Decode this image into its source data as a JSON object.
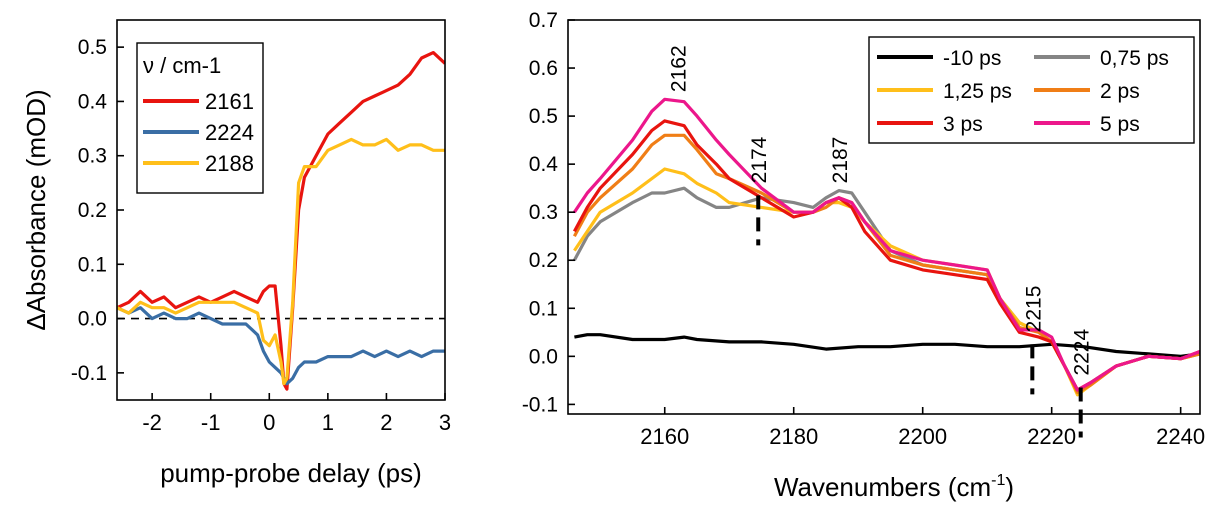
{
  "chart_data": [
    {
      "type": "line",
      "title": "",
      "xlabel": "pump-probe delay (ps)",
      "ylabel": "ΔAbsorbance (mOD)",
      "xlim": [
        -2.6,
        3.0
      ],
      "ylim": [
        -0.15,
        0.55
      ],
      "xticks": [
        -2,
        -1,
        0,
        1,
        2,
        3
      ],
      "yticks": [
        -0.1,
        0.0,
        0.1,
        0.2,
        0.3,
        0.4,
        0.5
      ],
      "xtick_labels": [
        "-2",
        "-1",
        "0",
        "1",
        "2",
        "3"
      ],
      "ytick_labels": [
        "-0.1",
        "0.0",
        "0.1",
        "0.2",
        "0.3",
        "0.4",
        "0.5"
      ],
      "zero_line": true,
      "legend": {
        "title": "ν / cm-1",
        "position": "top-left"
      },
      "series": [
        {
          "name": "2161",
          "color": "#e8140f",
          "x": [
            -2.6,
            -2.4,
            -2.2,
            -2.0,
            -1.8,
            -1.6,
            -1.4,
            -1.2,
            -1.0,
            -0.8,
            -0.6,
            -0.4,
            -0.2,
            -0.1,
            0.0,
            0.1,
            0.2,
            0.25,
            0.3,
            0.4,
            0.5,
            0.6,
            0.8,
            1.0,
            1.2,
            1.4,
            1.6,
            1.8,
            2.0,
            2.2,
            2.4,
            2.6,
            2.8,
            3.0
          ],
          "y": [
            0.02,
            0.03,
            0.05,
            0.03,
            0.04,
            0.02,
            0.03,
            0.04,
            0.03,
            0.04,
            0.05,
            0.04,
            0.03,
            0.05,
            0.06,
            0.06,
            -0.05,
            -0.12,
            -0.13,
            0.02,
            0.2,
            0.26,
            0.3,
            0.34,
            0.36,
            0.38,
            0.4,
            0.41,
            0.42,
            0.43,
            0.45,
            0.48,
            0.49,
            0.47
          ]
        },
        {
          "name": "2224",
          "color": "#3a6ea5",
          "x": [
            -2.6,
            -2.4,
            -2.2,
            -2.0,
            -1.8,
            -1.6,
            -1.4,
            -1.2,
            -1.0,
            -0.8,
            -0.6,
            -0.4,
            -0.2,
            -0.1,
            0.0,
            0.1,
            0.2,
            0.3,
            0.4,
            0.5,
            0.6,
            0.8,
            1.0,
            1.2,
            1.4,
            1.6,
            1.8,
            2.0,
            2.2,
            2.4,
            2.6,
            2.8,
            3.0
          ],
          "y": [
            0.02,
            0.01,
            0.02,
            0.0,
            0.01,
            0.0,
            0.0,
            0.01,
            0.0,
            -0.01,
            -0.01,
            -0.01,
            -0.03,
            -0.06,
            -0.08,
            -0.09,
            -0.1,
            -0.12,
            -0.11,
            -0.09,
            -0.08,
            -0.08,
            -0.07,
            -0.07,
            -0.07,
            -0.06,
            -0.07,
            -0.06,
            -0.07,
            -0.06,
            -0.07,
            -0.06,
            -0.06
          ]
        },
        {
          "name": "2188",
          "color": "#ffbf1a",
          "x": [
            -2.6,
            -2.4,
            -2.2,
            -2.0,
            -1.8,
            -1.6,
            -1.4,
            -1.2,
            -1.0,
            -0.8,
            -0.6,
            -0.4,
            -0.2,
            -0.1,
            0.0,
            0.1,
            0.2,
            0.25,
            0.3,
            0.4,
            0.5,
            0.6,
            0.8,
            1.0,
            1.2,
            1.4,
            1.6,
            1.8,
            2.0,
            2.2,
            2.4,
            2.6,
            2.8,
            3.0
          ],
          "y": [
            0.02,
            0.01,
            0.03,
            0.02,
            0.02,
            0.01,
            0.02,
            0.03,
            0.03,
            0.03,
            0.03,
            0.02,
            0.01,
            -0.04,
            -0.05,
            -0.03,
            -0.08,
            -0.12,
            -0.11,
            0.03,
            0.25,
            0.28,
            0.28,
            0.31,
            0.32,
            0.33,
            0.32,
            0.32,
            0.33,
            0.31,
            0.32,
            0.32,
            0.31,
            0.31
          ]
        }
      ]
    },
    {
      "type": "line",
      "title": "",
      "xlabel": "Wavenumbers (cm",
      "xlabel_sup": "-1",
      "xlabel_end": ")",
      "ylabel": "",
      "xlim": [
        2145,
        2243
      ],
      "ylim": [
        -0.12,
        0.7
      ],
      "xticks": [
        2160,
        2180,
        2200,
        2220,
        2240
      ],
      "yticks": [
        -0.1,
        0.0,
        0.1,
        0.2,
        0.3,
        0.4,
        0.5,
        0.6,
        0.7
      ],
      "xtick_labels": [
        "2160",
        "2180",
        "2200",
        "2220",
        "2240"
      ],
      "ytick_labels": [
        "-0.1",
        "0.0",
        "0.1",
        "0.2",
        "0.3",
        "0.4",
        "0.5",
        "0.6",
        "0.7"
      ],
      "legend": {
        "position": "top-right",
        "columns": 2
      },
      "annotations": [
        {
          "text": "2162",
          "x": 2162,
          "y": 0.55,
          "marker": false
        },
        {
          "text": "2174",
          "x": 2174.5,
          "y": 0.36,
          "marker": true
        },
        {
          "text": "2187",
          "x": 2187,
          "y": 0.36,
          "marker": false
        },
        {
          "text": "2215",
          "x": 2217,
          "y": 0.05,
          "marker": true
        },
        {
          "text": "2224",
          "x": 2224.5,
          "y": -0.04,
          "marker": true
        }
      ],
      "series": [
        {
          "name": "-10 ps",
          "color": "#000000",
          "x": [
            2146,
            2148,
            2150,
            2155,
            2160,
            2163,
            2165,
            2170,
            2175,
            2180,
            2185,
            2190,
            2195,
            2200,
            2205,
            2210,
            2215,
            2220,
            2225,
            2230,
            2235,
            2240,
            2243
          ],
          "y": [
            0.04,
            0.045,
            0.045,
            0.035,
            0.035,
            0.04,
            0.035,
            0.03,
            0.03,
            0.025,
            0.015,
            0.02,
            0.02,
            0.025,
            0.025,
            0.02,
            0.02,
            0.025,
            0.02,
            0.01,
            0.005,
            0.0,
            0.005
          ]
        },
        {
          "name": "0,75 ps",
          "color": "#858585",
          "x": [
            2146,
            2148,
            2150,
            2155,
            2158,
            2160,
            2163,
            2165,
            2168,
            2170,
            2175,
            2180,
            2183,
            2185,
            2187,
            2189,
            2191,
            2195,
            2200,
            2205,
            2210,
            2212,
            2215,
            2218,
            2220,
            2222,
            2224,
            2226,
            2230,
            2235,
            2240,
            2243
          ],
          "y": [
            0.2,
            0.25,
            0.28,
            0.32,
            0.34,
            0.34,
            0.35,
            0.33,
            0.31,
            0.31,
            0.33,
            0.32,
            0.31,
            0.33,
            0.345,
            0.34,
            0.3,
            0.22,
            0.19,
            0.18,
            0.17,
            0.12,
            0.07,
            0.05,
            0.03,
            -0.02,
            -0.07,
            -0.055,
            -0.02,
            0.0,
            -0.005,
            0.005
          ]
        },
        {
          "name": "1,25 ps",
          "color": "#ffbf1a",
          "x": [
            2146,
            2148,
            2150,
            2155,
            2158,
            2160,
            2163,
            2165,
            2168,
            2170,
            2175,
            2180,
            2183,
            2185,
            2187,
            2189,
            2191,
            2195,
            2200,
            2205,
            2210,
            2212,
            2215,
            2218,
            2220,
            2222,
            2224,
            2226,
            2230,
            2235,
            2240,
            2243
          ],
          "y": [
            0.22,
            0.26,
            0.3,
            0.34,
            0.37,
            0.39,
            0.38,
            0.36,
            0.34,
            0.32,
            0.31,
            0.3,
            0.3,
            0.32,
            0.32,
            0.31,
            0.28,
            0.23,
            0.2,
            0.19,
            0.18,
            0.12,
            0.07,
            0.05,
            0.03,
            -0.02,
            -0.08,
            -0.06,
            -0.02,
            0.0,
            -0.005,
            0.005
          ]
        },
        {
          "name": "2 ps",
          "color": "#f07e16",
          "x": [
            2146,
            2148,
            2150,
            2155,
            2158,
            2160,
            2163,
            2165,
            2168,
            2170,
            2175,
            2180,
            2183,
            2185,
            2187,
            2189,
            2191,
            2195,
            2200,
            2205,
            2210,
            2212,
            2215,
            2218,
            2220,
            2222,
            2224,
            2226,
            2230,
            2235,
            2240,
            2243
          ],
          "y": [
            0.25,
            0.3,
            0.33,
            0.39,
            0.44,
            0.46,
            0.46,
            0.43,
            0.38,
            0.37,
            0.34,
            0.3,
            0.3,
            0.31,
            0.33,
            0.32,
            0.28,
            0.21,
            0.19,
            0.18,
            0.17,
            0.12,
            0.06,
            0.05,
            0.03,
            -0.02,
            -0.075,
            -0.06,
            -0.02,
            0.0,
            -0.005,
            0.005
          ]
        },
        {
          "name": "3 ps",
          "color": "#e8140f",
          "x": [
            2146,
            2148,
            2150,
            2155,
            2158,
            2160,
            2163,
            2165,
            2168,
            2170,
            2175,
            2180,
            2183,
            2185,
            2187,
            2189,
            2191,
            2195,
            2200,
            2205,
            2210,
            2212,
            2215,
            2218,
            2220,
            2222,
            2224,
            2226,
            2230,
            2235,
            2240,
            2243
          ],
          "y": [
            0.26,
            0.31,
            0.35,
            0.42,
            0.47,
            0.49,
            0.48,
            0.44,
            0.4,
            0.37,
            0.33,
            0.29,
            0.3,
            0.32,
            0.33,
            0.31,
            0.26,
            0.2,
            0.18,
            0.17,
            0.16,
            0.11,
            0.05,
            0.04,
            0.03,
            -0.02,
            -0.07,
            -0.055,
            -0.02,
            0.0,
            -0.005,
            0.01
          ]
        },
        {
          "name": "5 ps",
          "color": "#ec178b",
          "x": [
            2146,
            2148,
            2150,
            2155,
            2158,
            2160,
            2163,
            2165,
            2168,
            2170,
            2175,
            2180,
            2183,
            2185,
            2187,
            2189,
            2191,
            2195,
            2200,
            2205,
            2210,
            2212,
            2215,
            2218,
            2220,
            2222,
            2224,
            2226,
            2230,
            2235,
            2240,
            2243
          ],
          "y": [
            0.3,
            0.34,
            0.37,
            0.45,
            0.51,
            0.535,
            0.53,
            0.5,
            0.45,
            0.42,
            0.35,
            0.3,
            0.3,
            0.32,
            0.33,
            0.32,
            0.28,
            0.22,
            0.2,
            0.19,
            0.18,
            0.12,
            0.055,
            0.055,
            0.04,
            -0.02,
            -0.07,
            -0.055,
            -0.02,
            0.0,
            -0.005,
            0.01
          ]
        }
      ]
    }
  ]
}
